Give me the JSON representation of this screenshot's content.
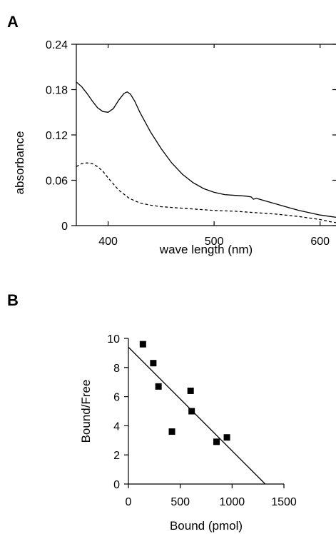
{
  "chart_data": [
    {
      "panel_label": "A",
      "type": "line",
      "xlabel": "wave length (nm)",
      "ylabel": "absorbance",
      "xlim": [
        370,
        615
      ],
      "ylim": [
        0,
        0.24
      ],
      "x_ticks": [
        400,
        500,
        600
      ],
      "y_ticks": [
        0,
        0.06,
        0.12,
        0.18,
        0.24
      ],
      "x_tick_labels": [
        "400",
        "500",
        "600"
      ],
      "y_tick_labels": [
        "0",
        "0.06",
        "0.12",
        "0.18",
        "0.24"
      ],
      "grid": false,
      "colors": {
        "line": "#000000"
      },
      "series": [
        {
          "style": "solid",
          "x": [
            370,
            375,
            380,
            385,
            390,
            395,
            400,
            405,
            410,
            415,
            418,
            421,
            425,
            430,
            440,
            450,
            460,
            470,
            480,
            490,
            500,
            510,
            520,
            530,
            535,
            537,
            540,
            545,
            550,
            560,
            570,
            580,
            590,
            600,
            610,
            615
          ],
          "y": [
            0.19,
            0.184,
            0.175,
            0.165,
            0.156,
            0.151,
            0.15,
            0.155,
            0.166,
            0.175,
            0.177,
            0.174,
            0.165,
            0.15,
            0.124,
            0.102,
            0.083,
            0.068,
            0.057,
            0.049,
            0.044,
            0.041,
            0.04,
            0.039,
            0.038,
            0.035,
            0.036,
            0.034,
            0.032,
            0.028,
            0.024,
            0.02,
            0.017,
            0.014,
            0.012,
            0.011
          ]
        },
        {
          "style": "dashed",
          "x": [
            370,
            375,
            380,
            385,
            390,
            395,
            400,
            405,
            410,
            420,
            430,
            440,
            450,
            460,
            470,
            480,
            500,
            520,
            540,
            560,
            580,
            600,
            610,
            615
          ],
          "y": [
            0.078,
            0.082,
            0.083,
            0.082,
            0.078,
            0.072,
            0.063,
            0.055,
            0.047,
            0.036,
            0.03,
            0.027,
            0.025,
            0.024,
            0.023,
            0.022,
            0.02,
            0.019,
            0.017,
            0.015,
            0.012,
            0.008,
            0.005,
            0.004
          ]
        }
      ]
    },
    {
      "panel_label": "B",
      "type": "scatter",
      "xlabel": "Bound (pmol)",
      "ylabel": "Bound/Free",
      "xlim": [
        0,
        1500
      ],
      "ylim": [
        0,
        10
      ],
      "x_ticks": [
        0,
        500,
        1000,
        1500
      ],
      "y_ticks": [
        0,
        2,
        4,
        6,
        8,
        10
      ],
      "x_tick_labels": [
        "0",
        "500",
        "1000",
        "1500"
      ],
      "y_tick_labels": [
        "0",
        "2",
        "4",
        "6",
        "8",
        "10"
      ],
      "grid": false,
      "colors": {
        "marker": "#000000",
        "line": "#000000"
      },
      "points": {
        "x": [
          140,
          240,
          290,
          420,
          600,
          610,
          850,
          950
        ],
        "y": [
          9.6,
          8.3,
          6.7,
          3.6,
          6.4,
          5.0,
          2.9,
          3.2
        ]
      },
      "fit_line": {
        "x": [
          0,
          1320
        ],
        "y": [
          9.4,
          0
        ]
      }
    }
  ]
}
